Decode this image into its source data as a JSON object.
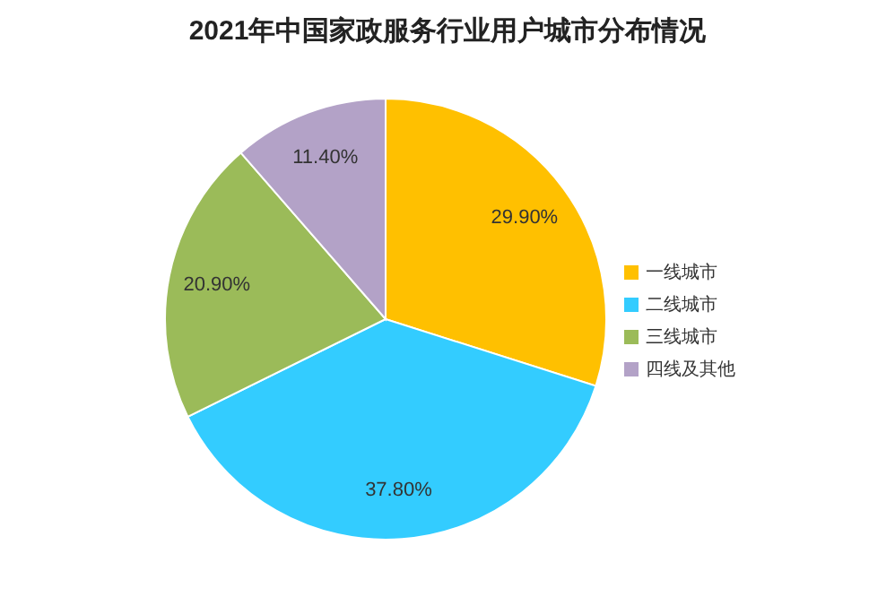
{
  "chart_data": {
    "type": "pie",
    "title": "2021年中国家政服务行业用户城市分布情况",
    "categories": [
      "一线城市",
      "二线城市",
      "三线城市",
      "四线及其他"
    ],
    "values": [
      29.9,
      37.8,
      20.9,
      11.4
    ],
    "value_labels": [
      "29.90%",
      "37.80%",
      "20.90%",
      "11.40%"
    ],
    "colors": [
      "#ffc000",
      "#33ccff",
      "#9bbb59",
      "#b3a2c7"
    ],
    "legend": "right"
  }
}
